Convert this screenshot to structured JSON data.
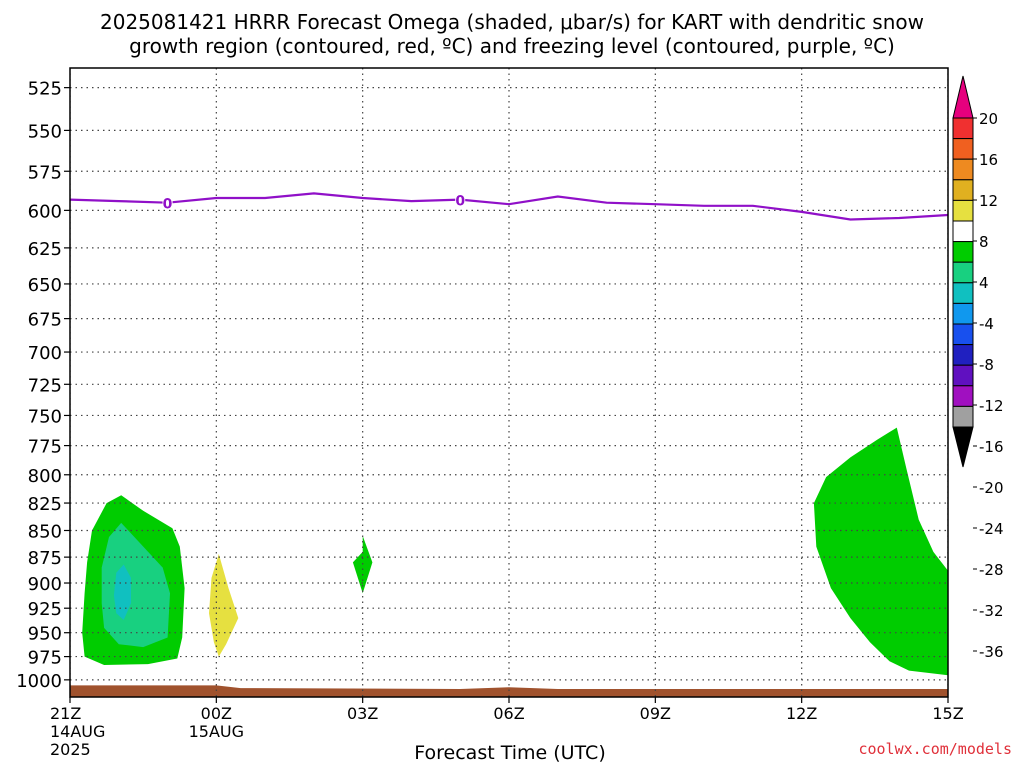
{
  "chart_data": {
    "type": "heatmap",
    "title_lines": [
      "2025081421 HRRR Forecast Omega (shaded, μbar/s) for KART with dendritic snow",
      "growth region (contoured, red, ºC) and freezing level (contoured, purple, ºC)"
    ],
    "xlabel": "Forecast Time (UTC)",
    "ylabel": "",
    "credit": "coolwx.com/models",
    "x_ticks": [
      {
        "h": 0,
        "lines": [
          "21Z",
          "14AUG",
          "2025"
        ]
      },
      {
        "h": 3,
        "lines": [
          "00Z",
          "15AUG"
        ]
      },
      {
        "h": 6,
        "lines": [
          "03Z"
        ]
      },
      {
        "h": 9,
        "lines": [
          "06Z"
        ]
      },
      {
        "h": 12,
        "lines": [
          "09Z"
        ]
      },
      {
        "h": 15,
        "lines": [
          "12Z"
        ]
      },
      {
        "h": 18,
        "lines": [
          "15Z"
        ]
      }
    ],
    "xlim_hours": [
      0,
      18
    ],
    "y_ticks": [
      525,
      550,
      575,
      600,
      625,
      650,
      675,
      700,
      725,
      750,
      775,
      800,
      825,
      850,
      875,
      900,
      925,
      950,
      975,
      1000
    ],
    "ylim_hPa": [
      510,
      1010
    ],
    "y_scale": "log-pressure (inverted)",
    "grid": true,
    "colorbar": {
      "labels": [
        "20",
        "16",
        "12",
        "8",
        "4",
        "-4",
        "-8",
        "-12",
        "-16",
        "-20",
        "-24",
        "-28",
        "-32",
        "-36"
      ],
      "colors": [
        "#e6007e",
        "#f03030",
        "#f06020",
        "#ee8a20",
        "#e0b020",
        "#e6e040",
        "#ffffff",
        "#00cc00",
        "#18d080",
        "#10c0c0",
        "#1098ee",
        "#1850ee",
        "#2020c0",
        "#6010c0",
        "#a010c0",
        "#a0a0a0",
        "#000000"
      ]
    },
    "freezing_level": {
      "label": "0",
      "color": "#9010c8",
      "points": [
        [
          0,
          593
        ],
        [
          1,
          594
        ],
        [
          2,
          595
        ],
        [
          3,
          592
        ],
        [
          4,
          592
        ],
        [
          5,
          589
        ],
        [
          6,
          592
        ],
        [
          7,
          594
        ],
        [
          8,
          593
        ],
        [
          9,
          596
        ],
        [
          10,
          591
        ],
        [
          11,
          595
        ],
        [
          12,
          596
        ],
        [
          13,
          597
        ],
        [
          14,
          597
        ],
        [
          15,
          601
        ],
        [
          16,
          606
        ],
        [
          17,
          605
        ],
        [
          18,
          603
        ]
      ]
    },
    "omega_regions": [
      {
        "value_range": "-8 to -4",
        "color": "#00cc00",
        "points": [
          [
            0.3,
            975
          ],
          [
            0.7,
            984
          ],
          [
            1.6,
            983
          ],
          [
            2.2,
            977
          ],
          [
            2.3,
            955
          ],
          [
            2.35,
            905
          ],
          [
            2.25,
            865
          ],
          [
            2.1,
            848
          ],
          [
            1.5,
            832
          ],
          [
            1.05,
            818
          ],
          [
            0.75,
            825
          ],
          [
            0.45,
            850
          ],
          [
            0.35,
            880
          ],
          [
            0.3,
            910
          ],
          [
            0.25,
            950
          ]
        ]
      },
      {
        "value_range": "-12 to -8",
        "color": "#18d080",
        "points": [
          [
            0.7,
            945
          ],
          [
            1.0,
            962
          ],
          [
            1.5,
            965
          ],
          [
            2.0,
            955
          ],
          [
            2.05,
            910
          ],
          [
            1.9,
            885
          ],
          [
            1.4,
            860
          ],
          [
            1.05,
            843
          ],
          [
            0.8,
            856
          ],
          [
            0.65,
            885
          ],
          [
            0.65,
            920
          ]
        ]
      },
      {
        "value_range": "-16 to -12",
        "color": "#10c0c0",
        "points": [
          [
            0.95,
            930
          ],
          [
            1.1,
            937
          ],
          [
            1.25,
            920
          ],
          [
            1.25,
            895
          ],
          [
            1.1,
            882
          ],
          [
            0.95,
            890
          ],
          [
            0.9,
            912
          ]
        ]
      },
      {
        "value_range": "4 to 8",
        "color": "#e6e040",
        "points": [
          [
            2.85,
            930
          ],
          [
            2.95,
            960
          ],
          [
            3.05,
            975
          ],
          [
            3.2,
            962
          ],
          [
            3.45,
            935
          ],
          [
            3.25,
            905
          ],
          [
            3.05,
            872
          ],
          [
            2.9,
            895
          ]
        ]
      },
      {
        "value_range": "-8 to -4",
        "color": "#00cc00",
        "points": [
          [
            6.0,
            870
          ],
          [
            5.8,
            880
          ],
          [
            6.0,
            910
          ],
          [
            6.2,
            880
          ],
          [
            6.0,
            855
          ]
        ]
      },
      {
        "value_range": "-8 to -4",
        "color": "#00cc00",
        "points": [
          [
            18,
            888
          ],
          [
            17.7,
            870
          ],
          [
            17.4,
            840
          ],
          [
            17.15,
            795
          ],
          [
            16.95,
            760
          ],
          [
            16.55,
            770
          ],
          [
            16.0,
            785
          ],
          [
            15.5,
            802
          ],
          [
            15.25,
            825
          ],
          [
            15.3,
            865
          ],
          [
            15.6,
            905
          ],
          [
            16.0,
            935
          ],
          [
            16.4,
            960
          ],
          [
            16.8,
            980
          ],
          [
            17.2,
            990
          ],
          [
            18,
            995
          ]
        ]
      }
    ],
    "terrain": {
      "color": "#a0522d",
      "top_points": [
        [
          0,
          1006
        ],
        [
          3,
          1006
        ],
        [
          3.5,
          1009
        ],
        [
          8,
          1010
        ],
        [
          9,
          1008
        ],
        [
          10,
          1010
        ],
        [
          18,
          1010
        ]
      ]
    }
  }
}
